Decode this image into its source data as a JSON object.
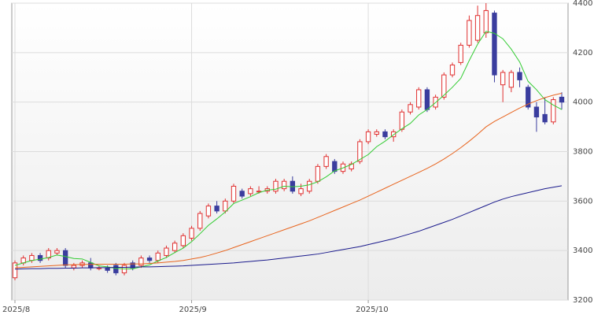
{
  "chart_data": {
    "type": "candlestick",
    "categories": [
      "2025/8",
      null,
      null,
      null,
      null,
      null,
      null,
      null,
      null,
      null,
      null,
      null,
      null,
      null,
      null,
      null,
      null,
      null,
      null,
      null,
      null,
      "2025/9",
      null,
      null,
      null,
      null,
      null,
      null,
      null,
      null,
      null,
      null,
      null,
      null,
      null,
      null,
      null,
      null,
      null,
      null,
      null,
      null,
      "2025/10",
      null,
      null,
      null,
      null,
      null,
      null,
      null,
      null,
      null,
      null,
      null,
      null,
      null,
      null,
      null,
      null,
      null,
      null,
      null,
      null,
      null,
      null,
      null
    ],
    "open": [
      3290,
      3350,
      3360,
      3380,
      3370,
      3390,
      3400,
      3330,
      3340,
      3350,
      3330,
      3330,
      3340,
      3310,
      3350,
      3340,
      3370,
      3360,
      3380,
      3400,
      3420,
      3450,
      3490,
      3540,
      3580,
      3560,
      3600,
      3640,
      3630,
      3640,
      3640,
      3640,
      3650,
      3680,
      3630,
      3640,
      3680,
      3740,
      3760,
      3720,
      3730,
      3760,
      3840,
      3870,
      3880,
      3860,
      3890,
      3960,
      3980,
      4050,
      3980,
      4020,
      4110,
      4160,
      4230,
      4250,
      4280,
      4360,
      4070,
      4060,
      4120,
      4060,
      3980,
      3950,
      3920,
      4020
    ],
    "high": [
      3360,
      3380,
      3390,
      3390,
      3410,
      3410,
      3410,
      3350,
      3360,
      3370,
      3340,
      3340,
      3350,
      3350,
      3360,
      3380,
      3380,
      3400,
      3420,
      3440,
      3470,
      3500,
      3560,
      3590,
      3600,
      3610,
      3670,
      3650,
      3660,
      3660,
      3660,
      3690,
      3690,
      3700,
      3670,
      3690,
      3750,
      3790,
      3770,
      3760,
      3760,
      3850,
      3890,
      3890,
      3890,
      3890,
      3970,
      4000,
      4060,
      4060,
      4030,
      4120,
      4160,
      4240,
      4350,
      4390,
      4400,
      4370,
      4130,
      4130,
      4140,
      4070,
      4000,
      4020,
      4020,
      4040
    ],
    "low": [
      3280,
      3340,
      3350,
      3350,
      3360,
      3380,
      3330,
      3320,
      3330,
      3320,
      3320,
      3310,
      3300,
      3300,
      3320,
      3330,
      3350,
      3350,
      3370,
      3390,
      3410,
      3440,
      3480,
      3530,
      3550,
      3550,
      3590,
      3610,
      3620,
      3630,
      3630,
      3630,
      3640,
      3630,
      3620,
      3630,
      3670,
      3730,
      3710,
      3710,
      3720,
      3750,
      3830,
      3860,
      3850,
      3840,
      3880,
      3950,
      3970,
      3960,
      3970,
      4010,
      4100,
      4150,
      4220,
      4240,
      4260,
      4080,
      4000,
      4040,
      4060,
      3970,
      3880,
      3910,
      3910,
      3970
    ],
    "close": [
      3350,
      3370,
      3380,
      3360,
      3400,
      3400,
      3340,
      3340,
      3350,
      3330,
      3330,
      3320,
      3310,
      3340,
      3330,
      3370,
      3360,
      3390,
      3410,
      3430,
      3460,
      3490,
      3550,
      3580,
      3560,
      3600,
      3660,
      3620,
      3650,
      3640,
      3650,
      3680,
      3680,
      3640,
      3650,
      3680,
      3740,
      3780,
      3720,
      3750,
      3750,
      3840,
      3880,
      3880,
      3860,
      3880,
      3960,
      3990,
      4050,
      3970,
      4020,
      4110,
      4150,
      4230,
      4330,
      4350,
      4370,
      4110,
      4120,
      4120,
      4090,
      3980,
      3940,
      3920,
      4010,
      4000
    ],
    "up_color": "#e03030",
    "down_color": "#3a3d9e",
    "lines": [
      {
        "color": "#33cc33",
        "values": [
          3340,
          3350,
          3360,
          3365,
          3372,
          3382,
          3376,
          3368,
          3366,
          3352,
          3338,
          3334,
          3328,
          3326,
          3326,
          3334,
          3342,
          3358,
          3372,
          3392,
          3410,
          3436,
          3468,
          3502,
          3528,
          3556,
          3590,
          3604,
          3618,
          3634,
          3644,
          3648,
          3660,
          3658,
          3660,
          3666,
          3678,
          3698,
          3722,
          3734,
          3748,
          3768,
          3788,
          3820,
          3842,
          3868,
          3892,
          3914,
          3948,
          3970,
          3998,
          4028,
          4060,
          4096,
          4168,
          4234,
          4286,
          4278,
          4256,
          4214,
          4162,
          4084,
          4050,
          4010,
          3988,
          3970
        ]
      },
      {
        "color": "#e8641e",
        "values": [
          3330,
          3332,
          3334,
          3336,
          3338,
          3340,
          3342,
          3343,
          3344,
          3344,
          3345,
          3345,
          3345,
          3345,
          3346,
          3346,
          3348,
          3350,
          3353,
          3356,
          3360,
          3366,
          3372,
          3380,
          3390,
          3400,
          3412,
          3424,
          3436,
          3448,
          3460,
          3472,
          3484,
          3496,
          3508,
          3520,
          3534,
          3548,
          3562,
          3576,
          3590,
          3604,
          3620,
          3636,
          3652,
          3668,
          3684,
          3700,
          3716,
          3732,
          3750,
          3770,
          3792,
          3816,
          3842,
          3870,
          3900,
          3922,
          3940,
          3958,
          3976,
          3992,
          4006,
          4018,
          4028,
          4036
        ]
      },
      {
        "color": "#1a1a8c",
        "values": [
          3325,
          3326,
          3327,
          3327,
          3328,
          3328,
          3329,
          3329,
          3330,
          3330,
          3331,
          3331,
          3332,
          3332,
          3333,
          3334,
          3334,
          3335,
          3336,
          3337,
          3338,
          3340,
          3342,
          3344,
          3346,
          3348,
          3350,
          3353,
          3356,
          3359,
          3362,
          3366,
          3370,
          3374,
          3378,
          3382,
          3386,
          3392,
          3398,
          3404,
          3410,
          3416,
          3424,
          3432,
          3440,
          3448,
          3458,
          3468,
          3478,
          3490,
          3502,
          3514,
          3526,
          3540,
          3554,
          3568,
          3582,
          3596,
          3608,
          3618,
          3626,
          3634,
          3642,
          3650,
          3656,
          3662
        ]
      }
    ],
    "ylim": [
      3200,
      4400
    ],
    "yticks": [
      3200,
      3400,
      3600,
      3800,
      4000,
      4200,
      4400
    ],
    "grid": true
  }
}
